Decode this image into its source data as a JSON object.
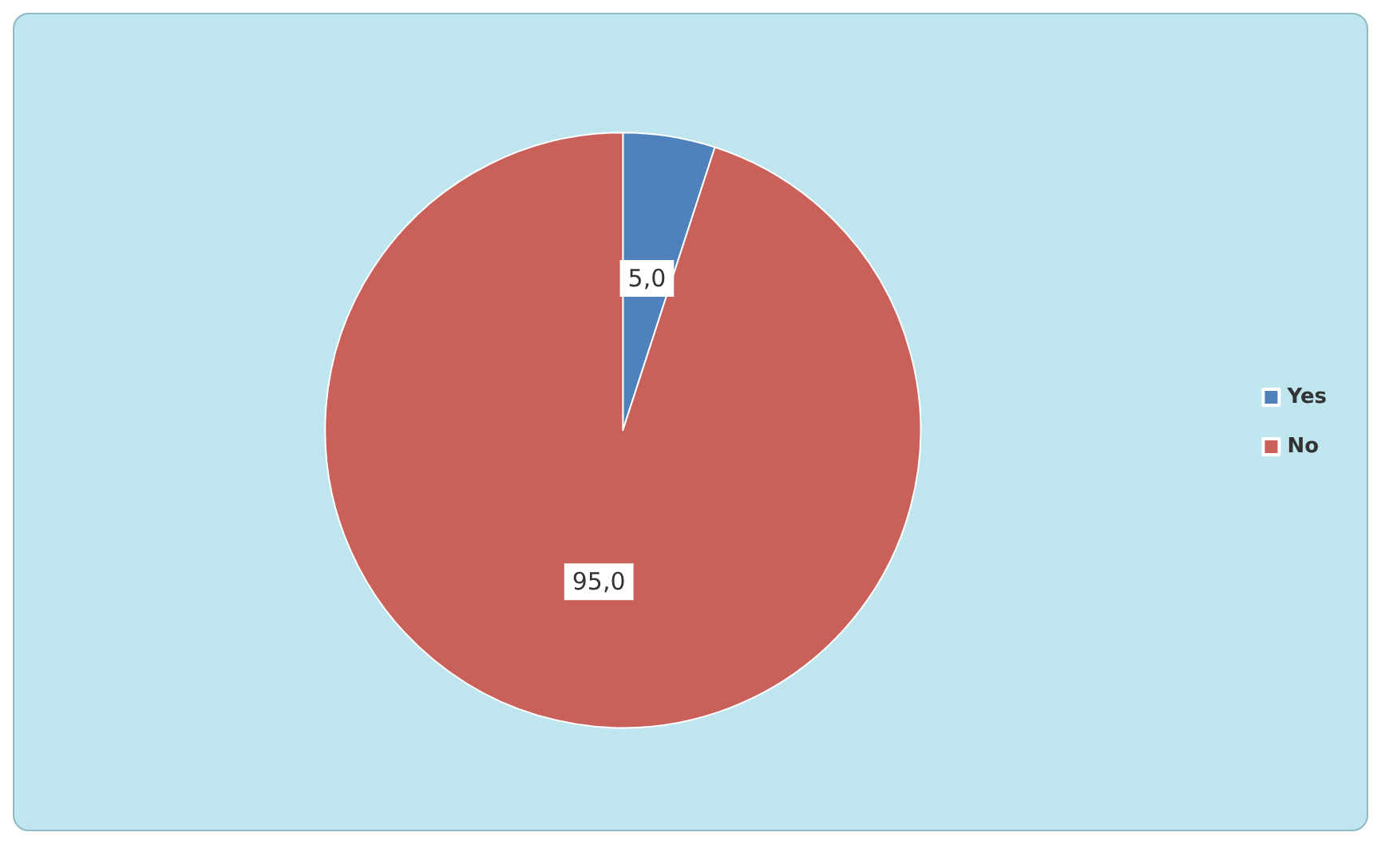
{
  "chart_data": {
    "type": "pie",
    "categories": [
      "Yes",
      "No"
    ],
    "values": [
      5,
      95
    ],
    "value_labels": [
      "5,0",
      "95,0"
    ],
    "colors": [
      "#4f81bd",
      "#c9605a"
    ],
    "legend": "right"
  }
}
